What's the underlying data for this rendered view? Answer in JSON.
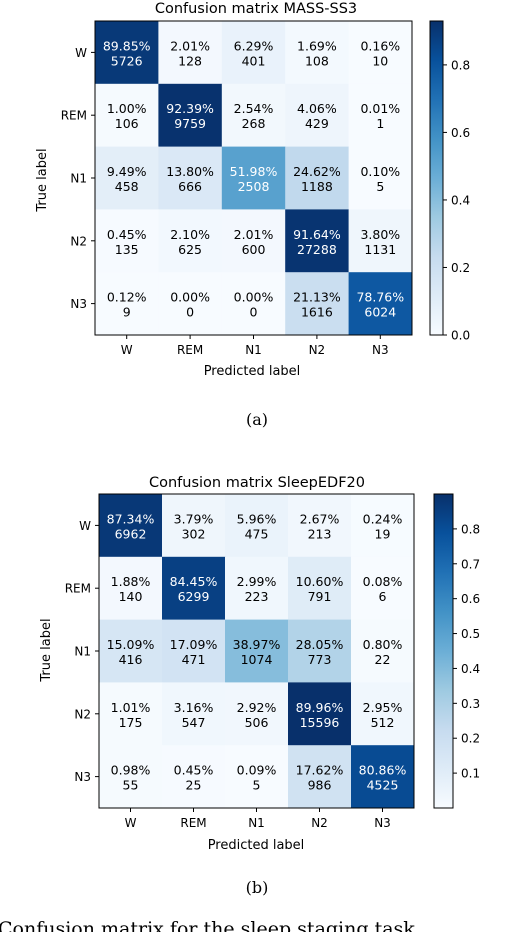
{
  "chart_data": [
    {
      "type": "heatmap",
      "title": "Confusion matrix MASS-SS3",
      "xlabel": "Predicted label",
      "ylabel": "True label",
      "x_categories": [
        "W",
        "REM",
        "N1",
        "N2",
        "N3"
      ],
      "y_categories": [
        "W",
        "REM",
        "N1",
        "N2",
        "N3"
      ],
      "percent_labels": [
        [
          "89.85%",
          "2.01%",
          "6.29%",
          "1.69%",
          "0.16%"
        ],
        [
          "1.00%",
          "92.39%",
          "2.54%",
          "4.06%",
          "0.01%"
        ],
        [
          "9.49%",
          "13.80%",
          "51.98%",
          "24.62%",
          "0.10%"
        ],
        [
          "0.45%",
          "2.10%",
          "2.01%",
          "91.64%",
          "3.80%"
        ],
        [
          "0.12%",
          "0.00%",
          "0.00%",
          "21.13%",
          "78.76%"
        ]
      ],
      "count_labels": [
        [
          "5726",
          "128",
          "401",
          "108",
          "10"
        ],
        [
          "106",
          "9759",
          "268",
          "429",
          "1"
        ],
        [
          "458",
          "666",
          "2508",
          "1188",
          "5"
        ],
        [
          "135",
          "625",
          "600",
          "27288",
          "1131"
        ],
        [
          "9",
          "0",
          "0",
          "1616",
          "6024"
        ]
      ],
      "colorbar": {
        "vmin": 0.0,
        "vmax": 0.93,
        "ticks": [
          0.0,
          0.2,
          0.4,
          0.6,
          0.8
        ],
        "tick_labels": [
          "0.0",
          "0.2",
          "0.4",
          "0.6",
          "0.8"
        ]
      }
    },
    {
      "type": "heatmap",
      "title": "Confusion matrix SleepEDF20",
      "xlabel": "Predicted label",
      "ylabel": "True label",
      "x_categories": [
        "W",
        "REM",
        "N1",
        "N2",
        "N3"
      ],
      "y_categories": [
        "W",
        "REM",
        "N1",
        "N2",
        "N3"
      ],
      "percent_labels": [
        [
          "87.34%",
          "3.79%",
          "5.96%",
          "2.67%",
          "0.24%"
        ],
        [
          "1.88%",
          "84.45%",
          "2.99%",
          "10.60%",
          "0.08%"
        ],
        [
          "15.09%",
          "17.09%",
          "38.97%",
          "28.05%",
          "0.80%"
        ],
        [
          "1.01%",
          "3.16%",
          "2.92%",
          "89.96%",
          "2.95%"
        ],
        [
          "0.98%",
          "0.45%",
          "0.09%",
          "17.62%",
          "80.86%"
        ]
      ],
      "count_labels": [
        [
          "6962",
          "302",
          "475",
          "213",
          "19"
        ],
        [
          "140",
          "6299",
          "223",
          "791",
          "6"
        ],
        [
          "416",
          "471",
          "1074",
          "773",
          "22"
        ],
        [
          "175",
          "547",
          "506",
          "15596",
          "512"
        ],
        [
          "55",
          "25",
          "5",
          "986",
          "4525"
        ]
      ],
      "colorbar": {
        "vmin": 0.0,
        "vmax": 0.9,
        "ticks": [
          0.1,
          0.2,
          0.3,
          0.4,
          0.5,
          0.6,
          0.7,
          0.8
        ],
        "tick_labels": [
          "0.1",
          "0.2",
          "0.3",
          "0.4",
          "0.5",
          "0.6",
          "0.7",
          "0.8"
        ]
      }
    }
  ],
  "captions": {
    "a": "(a)",
    "b": "(b)"
  },
  "footer_text": "Confusion matrix for the sleep staging task"
}
